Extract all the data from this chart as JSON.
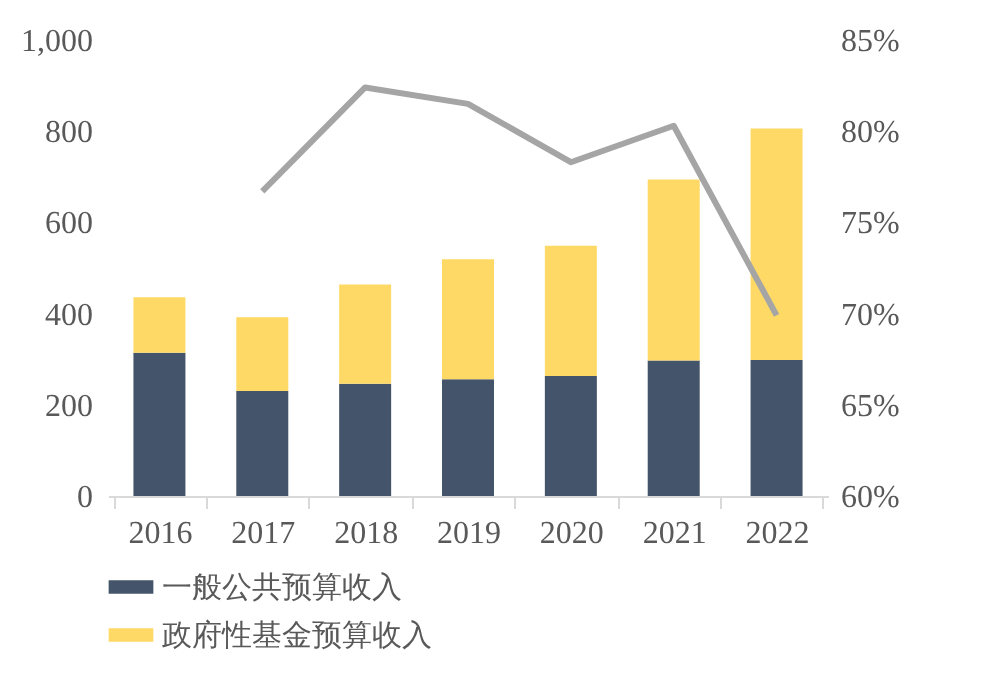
{
  "chart_data": {
    "type": "bar",
    "stacked": true,
    "categories": [
      "2016",
      "2017",
      "2018",
      "2019",
      "2020",
      "2021",
      "2022"
    ],
    "series": [
      {
        "name": "一般公共预算收入",
        "color": "#44546a",
        "values": [
          314,
          230,
          246,
          256,
          263,
          297,
          298
        ]
      },
      {
        "name": "政府性基金预算收入",
        "color": "#ffd966",
        "values": [
          122,
          162,
          218,
          263,
          286,
          397,
          508
        ]
      },
      {
        "type": "line",
        "axis": "y2",
        "color": "#a5a5a5",
        "values": [
          null,
          76.7,
          82.4,
          81.5,
          78.3,
          80.3,
          69.9
        ]
      }
    ],
    "ylim": [
      0,
      1000
    ],
    "yticks": [
      0,
      200,
      400,
      600,
      800,
      {
        "value": 1000,
        "label": "1,000"
      }
    ],
    "y2lim": [
      60,
      85
    ],
    "y2ticks": [
      {
        "value": 60,
        "label": "60%"
      },
      {
        "value": 65,
        "label": "65%"
      },
      {
        "value": 70,
        "label": "70%"
      },
      {
        "value": 75,
        "label": "75%"
      },
      {
        "value": 80,
        "label": "80%"
      },
      {
        "value": 85,
        "label": "85%"
      }
    ],
    "grid": false,
    "legend": "bottom"
  }
}
